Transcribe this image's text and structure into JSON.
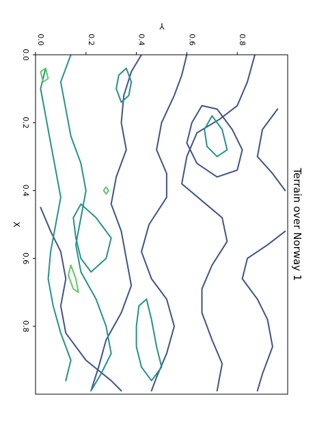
{
  "chart_data": {
    "type": "contour",
    "title": "Terrain over Norway 1",
    "xlabel": "X",
    "ylabel": "Y",
    "xlim": [
      0.0,
      1.0
    ],
    "ylim": [
      0.0,
      1.0
    ],
    "x_ticks": [
      "0.0",
      "0.2",
      "0.4",
      "0.6",
      "0.8"
    ],
    "y_ticks": [
      "0.0",
      "0.2",
      "0.4",
      "0.6",
      "0.8"
    ],
    "x_tick_values": [
      0.0,
      0.2,
      0.4,
      0.6,
      0.8
    ],
    "y_tick_values": [
      0.0,
      0.2,
      0.4,
      0.6,
      0.8
    ],
    "grid": false,
    "orientation": "rotated 90 degrees clockwise",
    "levels": [
      {
        "level": "low",
        "color": "#3b528b"
      },
      {
        "level": "mid",
        "color": "#21918c"
      },
      {
        "level": "high",
        "color": "#5ec962"
      }
    ],
    "contours": [
      {
        "level": 0,
        "points": [
          [
            0.0,
            0.87
          ],
          [
            0.08,
            0.84
          ],
          [
            0.15,
            0.8
          ],
          [
            0.19,
            0.73
          ],
          [
            0.23,
            0.64
          ],
          [
            0.3,
            0.6
          ],
          [
            0.38,
            0.58
          ],
          [
            0.43,
            0.66
          ],
          [
            0.48,
            0.74
          ],
          [
            0.55,
            0.76
          ],
          [
            0.62,
            0.7
          ],
          [
            0.69,
            0.66
          ],
          [
            0.76,
            0.66
          ],
          [
            0.84,
            0.7
          ],
          [
            0.91,
            0.74
          ],
          [
            0.99,
            0.72
          ]
        ]
      },
      {
        "level": 0,
        "points": [
          [
            0.0,
            0.6
          ],
          [
            0.06,
            0.58
          ],
          [
            0.12,
            0.55
          ],
          [
            0.2,
            0.5
          ],
          [
            0.28,
            0.48
          ],
          [
            0.35,
            0.52
          ],
          [
            0.42,
            0.52
          ],
          [
            0.5,
            0.45
          ],
          [
            0.58,
            0.42
          ],
          [
            0.66,
            0.46
          ],
          [
            0.72,
            0.52
          ],
          [
            0.8,
            0.55
          ],
          [
            0.88,
            0.52
          ],
          [
            0.95,
            0.48
          ],
          [
            0.99,
            0.46
          ]
        ]
      },
      {
        "level": 0,
        "points": [
          [
            0.0,
            0.42
          ],
          [
            0.05,
            0.38
          ],
          [
            0.12,
            0.35
          ],
          [
            0.2,
            0.34
          ],
          [
            0.28,
            0.36
          ],
          [
            0.36,
            0.32
          ],
          [
            0.44,
            0.3
          ],
          [
            0.52,
            0.34
          ],
          [
            0.6,
            0.36
          ],
          [
            0.68,
            0.38
          ],
          [
            0.76,
            0.34
          ],
          [
            0.84,
            0.28
          ],
          [
            0.92,
            0.25
          ],
          [
            0.99,
            0.22
          ]
        ]
      },
      {
        "level": 0,
        "points": [
          [
            0.45,
            0.02
          ],
          [
            0.52,
            0.06
          ],
          [
            0.58,
            0.1
          ],
          [
            0.66,
            0.12
          ],
          [
            0.74,
            0.1
          ],
          [
            0.82,
            0.12
          ],
          [
            0.9,
            0.2
          ],
          [
            0.96,
            0.3
          ],
          [
            0.99,
            0.34
          ]
        ]
      },
      {
        "level": 0,
        "points": [
          [
            0.16,
            0.96
          ],
          [
            0.22,
            0.9
          ],
          [
            0.3,
            0.88
          ],
          [
            0.35,
            0.94
          ],
          [
            0.4,
            0.99
          ]
        ]
      },
      {
        "level": 0,
        "points": [
          [
            0.52,
            0.99
          ],
          [
            0.56,
            0.92
          ],
          [
            0.6,
            0.84
          ],
          [
            0.66,
            0.82
          ],
          [
            0.72,
            0.88
          ],
          [
            0.78,
            0.92
          ],
          [
            0.86,
            0.94
          ],
          [
            0.94,
            0.9
          ],
          [
            0.99,
            0.88
          ]
        ]
      },
      {
        "level": 0,
        "points": [
          [
            0.15,
            0.66
          ],
          [
            0.2,
            0.62
          ],
          [
            0.26,
            0.6
          ],
          [
            0.32,
            0.64
          ],
          [
            0.36,
            0.72
          ],
          [
            0.34,
            0.8
          ],
          [
            0.28,
            0.82
          ],
          [
            0.22,
            0.78
          ],
          [
            0.16,
            0.72
          ],
          [
            0.15,
            0.66
          ]
        ]
      },
      {
        "level": 1,
        "points": [
          [
            0.0,
            0.14
          ],
          [
            0.08,
            0.1
          ],
          [
            0.16,
            0.12
          ],
          [
            0.24,
            0.14
          ],
          [
            0.32,
            0.18
          ],
          [
            0.4,
            0.2
          ],
          [
            0.48,
            0.18
          ],
          [
            0.56,
            0.16
          ],
          [
            0.64,
            0.18
          ],
          [
            0.72,
            0.24
          ],
          [
            0.8,
            0.28
          ],
          [
            0.88,
            0.3
          ],
          [
            0.94,
            0.26
          ],
          [
            0.99,
            0.22
          ]
        ]
      },
      {
        "level": 1,
        "points": [
          [
            0.04,
            0.04
          ],
          [
            0.1,
            0.02
          ],
          [
            0.18,
            0.04
          ],
          [
            0.26,
            0.06
          ],
          [
            0.34,
            0.08
          ],
          [
            0.42,
            0.1
          ],
          [
            0.5,
            0.08
          ],
          [
            0.58,
            0.06
          ],
          [
            0.66,
            0.05
          ],
          [
            0.74,
            0.07
          ],
          [
            0.82,
            0.1
          ],
          [
            0.9,
            0.14
          ],
          [
            0.96,
            0.12
          ]
        ]
      },
      {
        "level": 1,
        "points": [
          [
            0.44,
            0.18
          ],
          [
            0.48,
            0.24
          ],
          [
            0.54,
            0.3
          ],
          [
            0.6,
            0.28
          ],
          [
            0.64,
            0.22
          ],
          [
            0.6,
            0.18
          ],
          [
            0.54,
            0.16
          ],
          [
            0.48,
            0.15
          ],
          [
            0.44,
            0.18
          ]
        ]
      },
      {
        "level": 1,
        "points": [
          [
            0.72,
            0.44
          ],
          [
            0.78,
            0.46
          ],
          [
            0.86,
            0.48
          ],
          [
            0.92,
            0.5
          ],
          [
            0.96,
            0.46
          ],
          [
            0.92,
            0.42
          ],
          [
            0.86,
            0.4
          ],
          [
            0.8,
            0.4
          ],
          [
            0.74,
            0.41
          ],
          [
            0.72,
            0.44
          ]
        ]
      },
      {
        "level": 1,
        "points": [
          [
            0.18,
            0.7
          ],
          [
            0.22,
            0.74
          ],
          [
            0.28,
            0.76
          ],
          [
            0.3,
            0.72
          ],
          [
            0.27,
            0.68
          ],
          [
            0.22,
            0.67
          ],
          [
            0.18,
            0.7
          ]
        ]
      },
      {
        "level": 1,
        "points": [
          [
            0.04,
            0.36
          ],
          [
            0.08,
            0.38
          ],
          [
            0.12,
            0.37
          ],
          [
            0.14,
            0.34
          ],
          [
            0.1,
            0.32
          ],
          [
            0.06,
            0.33
          ],
          [
            0.04,
            0.36
          ]
        ]
      },
      {
        "level": 2,
        "points": [
          [
            0.04,
            0.04
          ],
          [
            0.07,
            0.05
          ],
          [
            0.08,
            0.03
          ],
          [
            0.05,
            0.02
          ],
          [
            0.04,
            0.04
          ]
        ]
      },
      {
        "level": 2,
        "points": [
          [
            0.62,
            0.14
          ],
          [
            0.66,
            0.16
          ],
          [
            0.7,
            0.17
          ],
          [
            0.69,
            0.15
          ],
          [
            0.65,
            0.13
          ],
          [
            0.62,
            0.14
          ]
        ]
      },
      {
        "level": 2,
        "points": [
          [
            0.39,
            0.28
          ],
          [
            0.4,
            0.29
          ],
          [
            0.41,
            0.28
          ],
          [
            0.4,
            0.27
          ],
          [
            0.39,
            0.28
          ]
        ]
      }
    ]
  }
}
